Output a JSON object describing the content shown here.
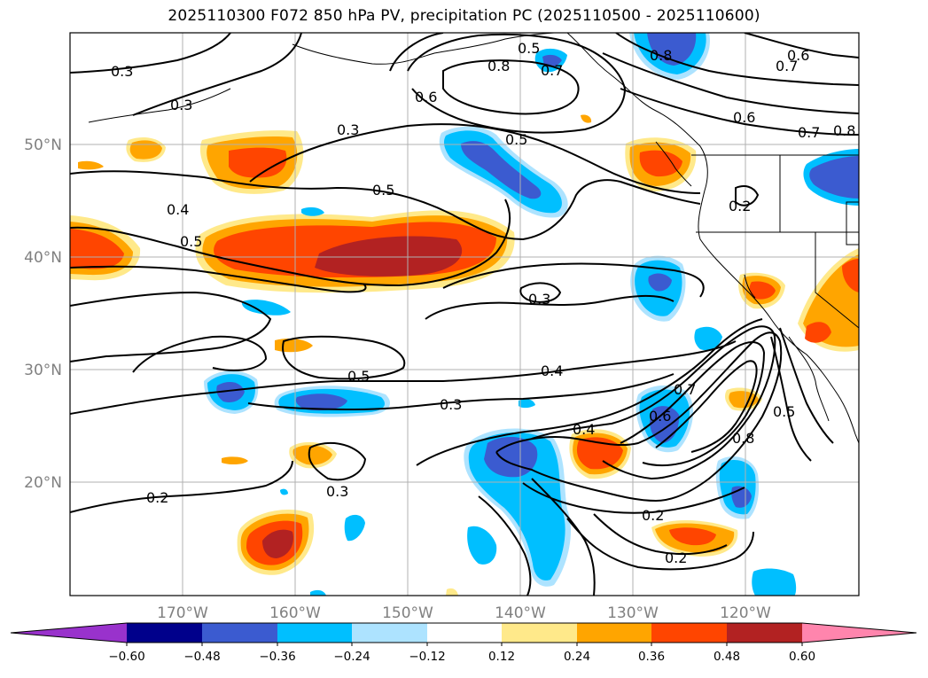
{
  "title": "2025110300 F072 850 hPa PV, precipitation PC (2025110500 - 2025110600)",
  "colors": {
    "neg060": "#9932cc",
    "neg048": "#00008b",
    "neg036": "#3b5bd0",
    "neg024": "#00bfff",
    "neg012": "#ade3ff",
    "zero": "#ffffff",
    "pos012": "#ffe98a",
    "pos024": "#ffa500",
    "pos036": "#ff4500",
    "pos048": "#b22222",
    "pos060": "#ff85ad"
  },
  "lat_labels": [
    "50°N",
    "40°N",
    "30°N",
    "20°N"
  ],
  "lon_labels": [
    "170°W",
    "160°W",
    "150°W",
    "140°W",
    "130°W",
    "120°W"
  ],
  "colorbar": {
    "ticks": [
      "−0.60",
      "−0.48",
      "−0.36",
      "−0.24",
      "−0.12",
      "0.12",
      "0.24",
      "0.36",
      "0.48",
      "0.60"
    ]
  },
  "contour_labels": [
    "0.3",
    "0.3",
    "0.3",
    "0.5",
    "0.5",
    "0.4",
    "0.5",
    "0.6",
    "0.8",
    "0.5",
    "0.7",
    "0.8",
    "0.6",
    "0.7",
    "0.8",
    "0.6",
    "0.7",
    "0.2",
    "0.3",
    "0.5",
    "0.3",
    "0.4",
    "0.4",
    "0.6",
    "0.7",
    "0.8",
    "0.5",
    "0.2",
    "0.2",
    "0.2",
    "0.3"
  ]
}
